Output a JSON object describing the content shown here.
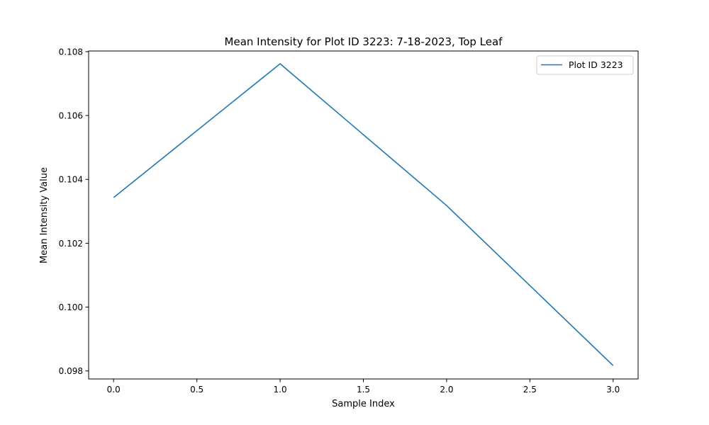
{
  "chart_data": {
    "type": "line",
    "title": "Mean Intensity for Plot ID 3223: 7-18-2023, Top Leaf",
    "xlabel": "Sample Index",
    "ylabel": "Mean Intensity Value",
    "xlim": [
      -0.15,
      3.15
    ],
    "ylim": [
      0.09775,
      0.10802
    ],
    "x_ticks": [
      0.0,
      0.5,
      1.0,
      1.5,
      2.0,
      2.5,
      3.0
    ],
    "x_tick_labels": [
      "0.0",
      "0.5",
      "1.0",
      "1.5",
      "2.0",
      "2.5",
      "3.0"
    ],
    "y_ticks": [
      0.098,
      0.1,
      0.102,
      0.104,
      0.106,
      0.108
    ],
    "y_tick_labels": [
      "0.098",
      "0.100",
      "0.102",
      "0.104",
      "0.106",
      "0.108"
    ],
    "grid": false,
    "legend_position": "top-right",
    "series": [
      {
        "name": "Plot ID 3223",
        "color": "#1f77b4",
        "x": [
          0,
          1,
          2,
          3
        ],
        "y": [
          0.10343,
          0.10762,
          0.10318,
          0.09817
        ]
      }
    ]
  }
}
